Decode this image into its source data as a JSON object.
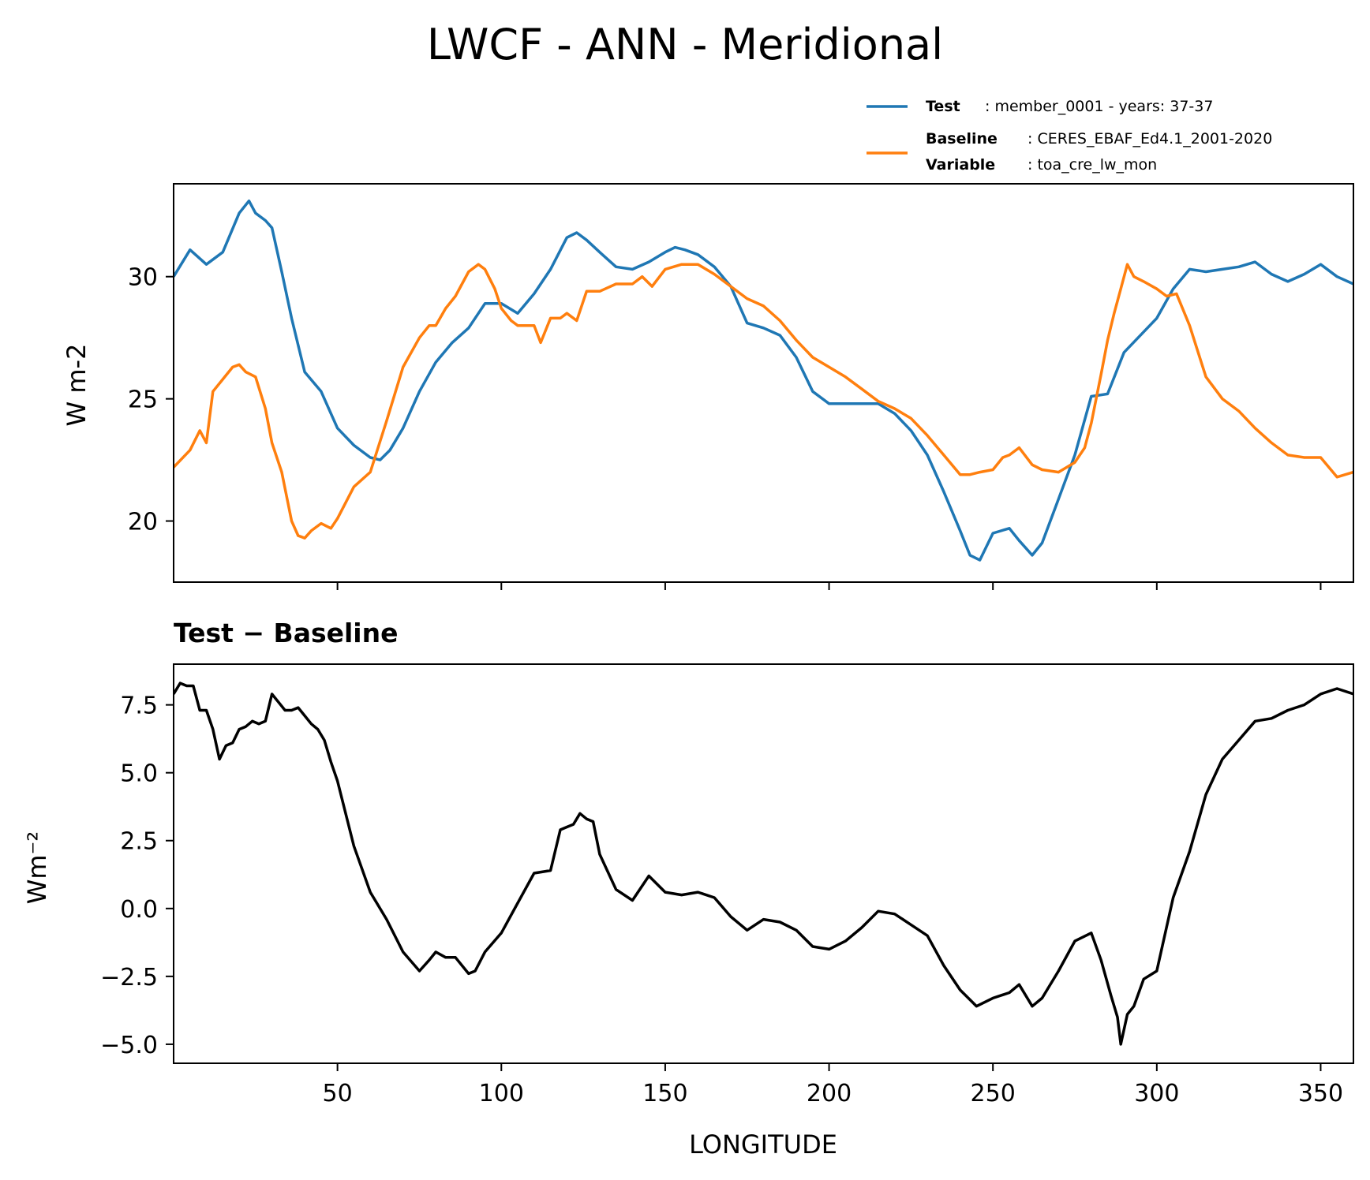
{
  "figure": {
    "title": "LWCF - ANN - Meridional"
  },
  "legend": {
    "test_key": "Test",
    "test_text": ": member_0001 - years: 37-37",
    "baseline_key": "Baseline",
    "baseline_text": ": CERES_EBAF_Ed4.1_2001-2020",
    "variable_key": "Variable",
    "variable_text": ": toa_cre_lw_mon"
  },
  "colors": {
    "test": "#1f77b4",
    "baseline": "#ff7f0e",
    "diff": "#000000"
  },
  "chart_data": [
    {
      "type": "line",
      "title": "",
      "xlabel": "",
      "ylabel": "W m-2",
      "xlim": [
        0,
        360
      ],
      "ylim": [
        17.5,
        33.8
      ],
      "xticks": [
        50,
        100,
        150,
        200,
        250,
        300,
        350
      ],
      "xtick_labels_visible": false,
      "yticks": [
        20,
        25,
        30
      ],
      "ytick_labels": [
        "20",
        "25",
        "30"
      ],
      "series": [
        {
          "name": "Test",
          "x": [
            0,
            5,
            10,
            15,
            20,
            23,
            25,
            28,
            30,
            33,
            36,
            40,
            45,
            48,
            50,
            55,
            60,
            63,
            66,
            70,
            75,
            80,
            85,
            90,
            95,
            100,
            105,
            110,
            115,
            120,
            123,
            126,
            130,
            135,
            140,
            145,
            150,
            153,
            156,
            160,
            165,
            170,
            175,
            180,
            185,
            190,
            195,
            200,
            205,
            210,
            215,
            220,
            225,
            230,
            235,
            240,
            243,
            246,
            250,
            255,
            258,
            262,
            265,
            270,
            275,
            280,
            285,
            290,
            295,
            300,
            305,
            310,
            315,
            320,
            325,
            330,
            335,
            340,
            345,
            350,
            355,
            360
          ],
          "values": [
            30.0,
            31.1,
            30.5,
            31.0,
            32.6,
            33.1,
            32.6,
            32.3,
            32.0,
            30.2,
            28.3,
            26.1,
            25.3,
            24.4,
            23.8,
            23.1,
            22.6,
            22.5,
            22.9,
            23.8,
            25.3,
            26.5,
            27.3,
            27.9,
            28.9,
            28.9,
            28.5,
            29.3,
            30.3,
            31.6,
            31.8,
            31.5,
            31.0,
            30.4,
            30.3,
            30.6,
            31.0,
            31.2,
            31.1,
            30.9,
            30.4,
            29.6,
            28.1,
            27.9,
            27.6,
            26.7,
            25.3,
            24.8,
            24.8,
            24.8,
            24.8,
            24.4,
            23.7,
            22.7,
            21.2,
            19.6,
            18.6,
            18.4,
            19.5,
            19.7,
            19.2,
            18.6,
            19.1,
            20.9,
            22.7,
            25.1,
            25.2,
            26.9,
            27.6,
            28.3,
            29.5,
            30.3,
            30.2,
            30.3,
            30.4,
            30.6,
            30.1,
            29.8,
            30.1,
            30.5,
            30.0,
            29.7
          ]
        },
        {
          "name": "Baseline",
          "x": [
            0,
            5,
            8,
            10,
            12,
            15,
            18,
            20,
            22,
            25,
            28,
            30,
            33,
            36,
            38,
            40,
            42,
            45,
            48,
            50,
            55,
            60,
            65,
            70,
            75,
            78,
            80,
            83,
            86,
            90,
            93,
            95,
            98,
            100,
            103,
            105,
            110,
            112,
            115,
            118,
            120,
            123,
            126,
            130,
            135,
            140,
            143,
            146,
            150,
            155,
            160,
            165,
            170,
            175,
            180,
            185,
            190,
            195,
            200,
            205,
            210,
            215,
            220,
            225,
            230,
            235,
            240,
            243,
            246,
            250,
            253,
            255,
            258,
            262,
            265,
            270,
            275,
            278,
            280,
            283,
            285,
            287,
            289,
            291,
            293,
            296,
            300,
            303,
            306,
            310,
            315,
            320,
            325,
            330,
            335,
            340,
            345,
            350,
            355,
            360
          ],
          "values": [
            22.2,
            22.9,
            23.7,
            23.2,
            25.3,
            25.8,
            26.3,
            26.4,
            26.1,
            25.9,
            24.6,
            23.2,
            22.0,
            20.0,
            19.4,
            19.3,
            19.6,
            19.9,
            19.7,
            20.1,
            21.4,
            22.0,
            24.1,
            26.3,
            27.5,
            28.0,
            28.0,
            28.7,
            29.2,
            30.2,
            30.5,
            30.3,
            29.5,
            28.7,
            28.2,
            28.0,
            28.0,
            27.3,
            28.3,
            28.3,
            28.5,
            28.2,
            29.4,
            29.4,
            29.7,
            29.7,
            30.0,
            29.6,
            30.3,
            30.5,
            30.5,
            30.1,
            29.6,
            29.1,
            28.8,
            28.2,
            27.4,
            26.7,
            26.3,
            25.9,
            25.4,
            24.9,
            24.6,
            24.2,
            23.5,
            22.7,
            21.9,
            21.9,
            22.0,
            22.1,
            22.6,
            22.7,
            23.0,
            22.3,
            22.1,
            22.0,
            22.4,
            23.0,
            24.0,
            26.0,
            27.4,
            28.5,
            29.5,
            30.5,
            30.0,
            29.8,
            29.5,
            29.2,
            29.3,
            28.0,
            25.9,
            25.0,
            24.5,
            23.8,
            23.2,
            22.7,
            22.6,
            22.6,
            21.8,
            22.0
          ]
        }
      ]
    },
    {
      "type": "line",
      "title": "Test − Baseline",
      "xlabel": "LONGITUDE",
      "ylabel": "Wm⁻²",
      "xlim": [
        0,
        360
      ],
      "ylim": [
        -5.7,
        9.0
      ],
      "xticks": [
        50,
        100,
        150,
        200,
        250,
        300,
        350
      ],
      "xtick_labels": [
        "50",
        "100",
        "150",
        "200",
        "250",
        "300",
        "350"
      ],
      "yticks": [
        -5.0,
        -2.5,
        0.0,
        2.5,
        5.0,
        7.5
      ],
      "ytick_labels": [
        "−5.0",
        "−2.5",
        "0.0",
        "2.5",
        "5.0",
        "7.5"
      ],
      "series": [
        {
          "name": "Test − Baseline",
          "x": [
            0,
            2,
            4,
            6,
            8,
            10,
            12,
            14,
            16,
            18,
            20,
            22,
            24,
            26,
            28,
            30,
            32,
            34,
            36,
            38,
            40,
            42,
            44,
            46,
            48,
            50,
            55,
            60,
            65,
            70,
            75,
            78,
            80,
            83,
            86,
            90,
            92,
            95,
            100,
            105,
            110,
            115,
            118,
            120,
            122,
            124,
            126,
            128,
            130,
            135,
            140,
            145,
            150,
            155,
            160,
            165,
            170,
            175,
            180,
            185,
            190,
            195,
            200,
            205,
            210,
            215,
            220,
            225,
            230,
            235,
            240,
            245,
            250,
            255,
            258,
            262,
            265,
            270,
            275,
            280,
            283,
            286,
            288,
            289,
            291,
            293,
            296,
            300,
            305,
            310,
            315,
            320,
            325,
            330,
            335,
            340,
            345,
            350,
            355,
            360
          ],
          "values": [
            7.9,
            8.3,
            8.2,
            8.2,
            7.3,
            7.3,
            6.6,
            5.5,
            6.0,
            6.1,
            6.6,
            6.7,
            6.9,
            6.8,
            6.9,
            7.9,
            7.6,
            7.3,
            7.3,
            7.4,
            7.1,
            6.8,
            6.6,
            6.2,
            5.4,
            4.7,
            2.3,
            0.6,
            -0.4,
            -1.6,
            -2.3,
            -1.9,
            -1.6,
            -1.8,
            -1.8,
            -2.4,
            -2.3,
            -1.6,
            -0.9,
            0.2,
            1.3,
            1.4,
            2.9,
            3.0,
            3.1,
            3.5,
            3.3,
            3.2,
            2.0,
            0.7,
            0.3,
            1.2,
            0.6,
            0.5,
            0.6,
            0.4,
            -0.3,
            -0.8,
            -0.4,
            -0.5,
            -0.8,
            -1.4,
            -1.5,
            -1.2,
            -0.7,
            -0.1,
            -0.2,
            -0.6,
            -1.0,
            -2.1,
            -3.0,
            -3.6,
            -3.3,
            -3.1,
            -2.8,
            -3.6,
            -3.3,
            -2.3,
            -1.2,
            -0.9,
            -1.9,
            -3.2,
            -4.0,
            -5.0,
            -3.9,
            -3.6,
            -2.6,
            -2.3,
            0.4,
            2.1,
            4.2,
            5.5,
            6.2,
            6.9,
            7.0,
            7.3,
            7.5,
            7.9,
            8.1,
            7.9
          ]
        }
      ]
    }
  ]
}
